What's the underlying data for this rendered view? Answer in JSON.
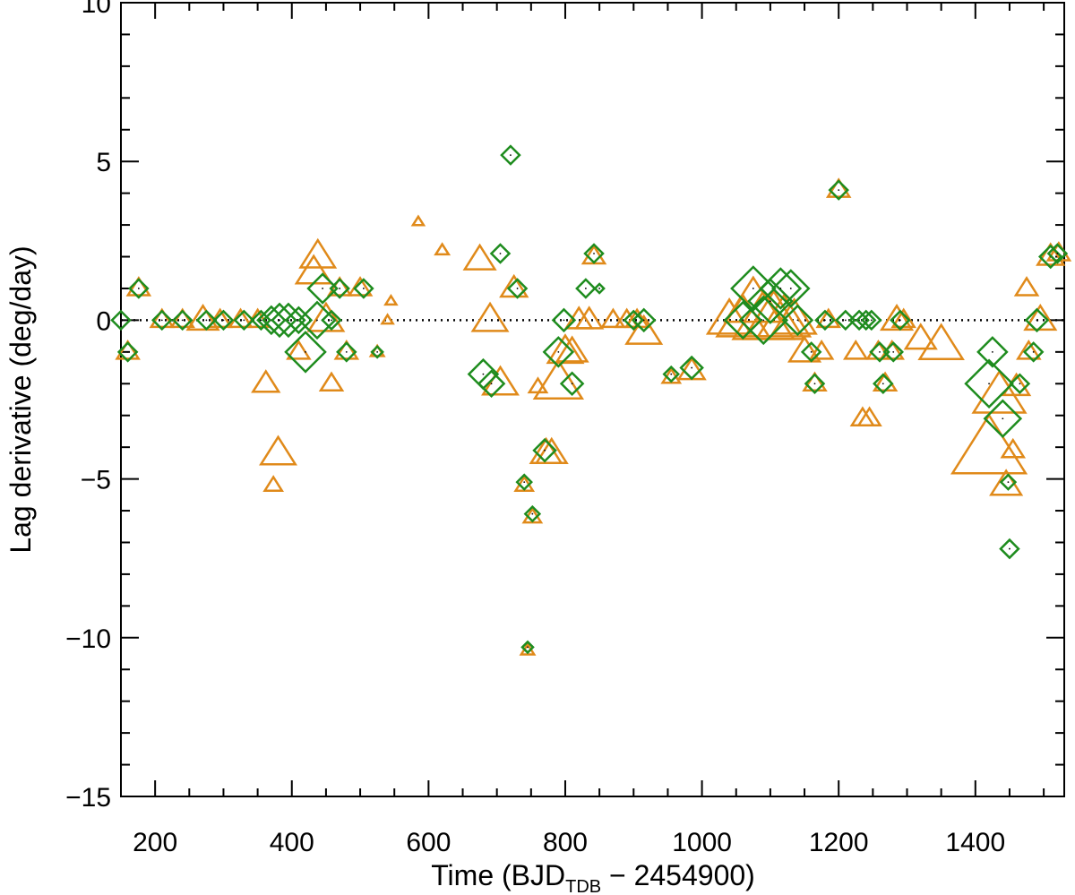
{
  "chart_data": {
    "type": "scatter",
    "title": "",
    "xlabel": "Time (BJD",
    "xlabel_sub": "TDB",
    "xlabel_tail": " − 2454900)",
    "ylabel": "Lag derivative (deg/day)",
    "xlim": [
      150,
      1530
    ],
    "ylim": [
      -15,
      10
    ],
    "xticks": [
      200,
      400,
      600,
      800,
      1000,
      1200,
      1400
    ],
    "xtick_labels": [
      "200",
      "400",
      "600",
      "800",
      "1000",
      "1200",
      "1400"
    ],
    "yticks": [
      -15,
      -10,
      -5,
      0,
      5,
      10
    ],
    "ytick_labels": [
      "−15",
      "−10",
      "−5",
      "0",
      "5",
      "10"
    ],
    "reference_line": {
      "y": 0,
      "style": "dotted"
    },
    "colors": {
      "diamond": "#1e8c1e",
      "triangle": "#e08a1a",
      "axis": "#000000"
    },
    "series": [
      {
        "name": "diamonds",
        "marker": "diamond",
        "points": [
          [
            150,
            0,
            1
          ],
          [
            160,
            -1,
            1
          ],
          [
            176,
            1,
            1
          ],
          [
            210,
            0,
            1
          ],
          [
            240,
            0,
            1
          ],
          [
            275,
            0,
            1
          ],
          [
            300,
            0,
            1
          ],
          [
            330,
            0,
            1
          ],
          [
            355,
            0,
            1
          ],
          [
            370,
            0,
            1.5
          ],
          [
            382,
            0,
            1.8
          ],
          [
            395,
            0,
            1.8
          ],
          [
            410,
            0,
            1.4
          ],
          [
            420,
            -1,
            2.2
          ],
          [
            437,
            0,
            2
          ],
          [
            445,
            1,
            1.6
          ],
          [
            458,
            0,
            1
          ],
          [
            470,
            1,
            1
          ],
          [
            480,
            -1,
            1
          ],
          [
            505,
            1,
            1
          ],
          [
            525,
            -1,
            0.6
          ],
          [
            680,
            -1.7,
            1.6
          ],
          [
            692,
            -2,
            1.4
          ],
          [
            705,
            2.1,
            1
          ],
          [
            720,
            5.2,
            1
          ],
          [
            730,
            1,
            1
          ],
          [
            740,
            -5.1,
            0.8
          ],
          [
            752,
            -6.1,
            0.8
          ],
          [
            745,
            -10.3,
            0.6
          ],
          [
            770,
            -4.1,
            1.2
          ],
          [
            790,
            -1,
            1.6
          ],
          [
            798,
            0,
            1.2
          ],
          [
            810,
            -2,
            1.2
          ],
          [
            830,
            1,
            1
          ],
          [
            842,
            2.1,
            1
          ],
          [
            850,
            1,
            0.5
          ],
          [
            900,
            0,
            1
          ],
          [
            915,
            0,
            1.2
          ],
          [
            955,
            -1.7,
            0.8
          ],
          [
            985,
            -1.5,
            1.2
          ],
          [
            1060,
            0,
            2
          ],
          [
            1075,
            1,
            2.4
          ],
          [
            1090,
            0,
            2.6
          ],
          [
            1100,
            0.6,
            2.4
          ],
          [
            1115,
            1,
            2.2
          ],
          [
            1130,
            1,
            2
          ],
          [
            1140,
            0,
            1.6
          ],
          [
            1160,
            -1,
            1
          ],
          [
            1165,
            -2,
            1
          ],
          [
            1180,
            0,
            1
          ],
          [
            1200,
            4.1,
            1
          ],
          [
            1210,
            0,
            1
          ],
          [
            1230,
            0,
            1
          ],
          [
            1240,
            0,
            1
          ],
          [
            1248,
            0,
            1
          ],
          [
            1260,
            -1,
            1
          ],
          [
            1265,
            -2,
            1
          ],
          [
            1280,
            -1,
            1
          ],
          [
            1290,
            0,
            1
          ],
          [
            1425,
            -1,
            1.6
          ],
          [
            1420,
            -2,
            2.6
          ],
          [
            1440,
            -3.1,
            2
          ],
          [
            1448,
            -5.1,
            0.8
          ],
          [
            1450,
            -7.2,
            1
          ],
          [
            1465,
            -2,
            1
          ],
          [
            1485,
            -1,
            1
          ],
          [
            1490,
            0,
            1.2
          ],
          [
            1510,
            2,
            1.2
          ],
          [
            1520,
            2.1,
            1
          ]
        ]
      },
      {
        "name": "triangles",
        "marker": "triangle",
        "points": [
          [
            160,
            -1,
            1
          ],
          [
            176,
            1,
            1
          ],
          [
            210,
            0,
            1
          ],
          [
            240,
            0,
            1
          ],
          [
            270,
            0,
            1.4
          ],
          [
            295,
            0,
            1
          ],
          [
            325,
            0,
            1
          ],
          [
            350,
            0,
            1
          ],
          [
            362,
            -2,
            1.2
          ],
          [
            380,
            -4.2,
            1.6
          ],
          [
            373,
            -5.2,
            0.8
          ],
          [
            410,
            -1,
            1
          ],
          [
            438,
            2,
            1.6
          ],
          [
            432,
            1.5,
            1.6
          ],
          [
            450,
            0,
            1.6
          ],
          [
            458,
            -2,
            1
          ],
          [
            470,
            1,
            1
          ],
          [
            480,
            -1,
            1
          ],
          [
            500,
            1,
            1
          ],
          [
            525,
            -1,
            0.6
          ],
          [
            540,
            0,
            0.5
          ],
          [
            545,
            0.6,
            0.5
          ],
          [
            585,
            3.1,
            0.5
          ],
          [
            620,
            2.2,
            0.6
          ],
          [
            675,
            1.9,
            1.4
          ],
          [
            690,
            0,
            1.6
          ],
          [
            705,
            -2,
            1.6
          ],
          [
            725,
            1,
            1.2
          ],
          [
            740,
            -5.2,
            0.8
          ],
          [
            752,
            -6.2,
            0.8
          ],
          [
            745,
            -10.4,
            0.6
          ],
          [
            760,
            -2.1,
            0.8
          ],
          [
            772,
            -4.2,
            1.4
          ],
          [
            780,
            -4.2,
            1.4
          ],
          [
            790,
            -2,
            2.2
          ],
          [
            800,
            -1,
            1.6
          ],
          [
            810,
            -1,
            1.4
          ],
          [
            820,
            0,
            1.2
          ],
          [
            835,
            0,
            1.2
          ],
          [
            842,
            2,
            1
          ],
          [
            870,
            0,
            1
          ],
          [
            890,
            0,
            1
          ],
          [
            905,
            0,
            1
          ],
          [
            915,
            -0.4,
            1.6
          ],
          [
            955,
            -1.8,
            0.8
          ],
          [
            985,
            -1.6,
            1.2
          ],
          [
            1040,
            0,
            2
          ],
          [
            1060,
            0,
            2.4
          ],
          [
            1075,
            0.5,
            2.6
          ],
          [
            1090,
            0,
            2.8
          ],
          [
            1105,
            0,
            2.8
          ],
          [
            1120,
            0,
            2.4
          ],
          [
            1135,
            0,
            2
          ],
          [
            1150,
            -1,
            1.4
          ],
          [
            1165,
            -2,
            1
          ],
          [
            1175,
            -1,
            1
          ],
          [
            1185,
            0,
            1
          ],
          [
            1200,
            4.1,
            1
          ],
          [
            1225,
            -1,
            1
          ],
          [
            1235,
            -3.1,
            1
          ],
          [
            1245,
            -3.1,
            1
          ],
          [
            1258,
            -1,
            1
          ],
          [
            1268,
            -2,
            1
          ],
          [
            1278,
            -1,
            1
          ],
          [
            1285,
            0,
            1.4
          ],
          [
            1295,
            0,
            1
          ],
          [
            1320,
            -0.6,
            1.4
          ],
          [
            1350,
            -0.8,
            2
          ],
          [
            1420,
            -4.1,
            3.4
          ],
          [
            1435,
            -2.4,
            2.4
          ],
          [
            1445,
            -5.2,
            1.4
          ],
          [
            1455,
            -4.1,
            1
          ],
          [
            1460,
            -2.1,
            1.2
          ],
          [
            1475,
            1,
            1
          ],
          [
            1478,
            -1,
            1
          ],
          [
            1495,
            0,
            1.4
          ],
          [
            1510,
            2,
            1.2
          ],
          [
            1522,
            2.1,
            1
          ]
        ]
      }
    ]
  }
}
